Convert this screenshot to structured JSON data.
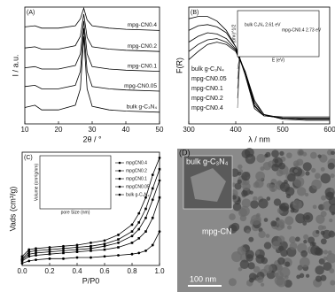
{
  "chart_data": [
    {
      "type": "line",
      "label": "(A)",
      "xlabel": "2θ / °",
      "ylabel": "I / a.u.",
      "xlim": [
        10,
        50
      ],
      "xticks": [
        10,
        20,
        30,
        40,
        50
      ],
      "ylim": [
        0,
        100
      ],
      "x": [
        10,
        13,
        15,
        20,
        25,
        26.5,
        27.5,
        28.5,
        30,
        35,
        40,
        50
      ],
      "series": [
        {
          "name": "mpg-CN0.4",
          "color": "#000000",
          "values": [
            83,
            84,
            82,
            82,
            84,
            90,
            99,
            89,
            84,
            82,
            81,
            80
          ]
        },
        {
          "name": "mpg-CN0.2",
          "color": "#000000",
          "values": [
            65,
            66,
            64,
            64,
            67,
            75,
            94,
            74,
            66,
            64,
            63,
            62
          ]
        },
        {
          "name": "mpg-CN0.1",
          "color": "#000000",
          "values": [
            48,
            49,
            47,
            47,
            50,
            60,
            88,
            60,
            49,
            47,
            46,
            45
          ]
        },
        {
          "name": "mpg-CN0.05",
          "color": "#000000",
          "values": [
            32,
            33,
            30,
            30,
            33,
            45,
            82,
            45,
            32,
            30,
            29,
            28
          ]
        },
        {
          "name": "bulk g-C₃N₄",
          "color": "#000000",
          "values": [
            14,
            16,
            12,
            12,
            16,
            30,
            75,
            30,
            15,
            12,
            11,
            10
          ]
        }
      ]
    },
    {
      "type": "line",
      "label": "(B)",
      "xlabel": "λ / nm",
      "ylabel": "F(R)",
      "xlim": [
        300,
        600
      ],
      "xticks": [
        300,
        400,
        500,
        600
      ],
      "ylim": [
        0,
        100
      ],
      "x": [
        300,
        320,
        340,
        360,
        380,
        400,
        420,
        440,
        460,
        500,
        550,
        600
      ],
      "series": [
        {
          "name": "bulk g-C₃N₄",
          "color": "#000000",
          "values": [
            55,
            62,
            68,
            70,
            68,
            62,
            45,
            20,
            8,
            4,
            3,
            3
          ]
        },
        {
          "name": "mpg-CN0.05",
          "color": "#000000",
          "values": [
            62,
            68,
            72,
            73,
            70,
            63,
            45,
            18,
            8,
            5,
            4,
            4
          ]
        },
        {
          "name": "mpg-CN0.1",
          "color": "#000000",
          "values": [
            70,
            75,
            78,
            77,
            73,
            64,
            44,
            16,
            7,
            5,
            4,
            4
          ]
        },
        {
          "name": "mpg-CN0.2",
          "color": "#000000",
          "values": [
            80,
            84,
            85,
            83,
            78,
            66,
            44,
            15,
            7,
            5,
            5,
            5
          ]
        },
        {
          "name": "mpg-CN0.4",
          "color": "#000000",
          "values": [
            90,
            92,
            92,
            88,
            80,
            66,
            42,
            13,
            7,
            6,
            6,
            6
          ]
        }
      ],
      "inset": {
        "xlabel": "E (eV)",
        "ylabel": "(αhν)^1/2",
        "notes": [
          "bulk C₃N₄ 2.61 eV",
          "mpg-CN0.4 2.73 eV"
        ]
      }
    },
    {
      "type": "line",
      "label": "(C)",
      "xlabel": "P/P0",
      "ylabel": "Vads (cm³/g)",
      "xlim": [
        0,
        1
      ],
      "xticks": [
        {
          "value": 0,
          "label": "0.0"
        },
        0.2,
        0.4,
        0.6,
        0.8,
        {
          "value": 1,
          "label": "1.0"
        }
      ],
      "ylim": [
        0,
        100
      ],
      "x": [
        0,
        0.05,
        0.1,
        0.2,
        0.3,
        0.4,
        0.5,
        0.6,
        0.7,
        0.8,
        0.85,
        0.9,
        0.95,
        1.0
      ],
      "series": [
        {
          "name": "mpgCN0.4",
          "color": "#000000",
          "values": [
            8,
            14,
            15,
            16,
            17,
            18,
            20,
            22,
            27,
            36,
            46,
            60,
            80,
            95
          ]
        },
        {
          "name": "mpgCN0.2",
          "color": "#000000",
          "values": [
            6,
            12,
            13,
            14,
            15,
            16,
            17,
            19,
            23,
            30,
            38,
            50,
            68,
            85
          ]
        },
        {
          "name": "mpgCN0.1",
          "color": "#000000",
          "values": [
            5,
            10,
            11,
            12,
            13,
            14,
            15,
            17,
            20,
            26,
            32,
            42,
            58,
            75
          ]
        },
        {
          "name": "mpgCN0.05",
          "color": "#000000",
          "values": [
            4,
            8,
            9,
            10,
            11,
            12,
            13,
            14,
            16,
            20,
            24,
            30,
            42,
            60
          ]
        },
        {
          "name": "bulk g-C₃N₄",
          "color": "#000000",
          "values": [
            2,
            4,
            5,
            6,
            6,
            7,
            7,
            8,
            9,
            10,
            11,
            13,
            18,
            30
          ]
        }
      ],
      "inset": {
        "xlabel": "pore Size (nm)",
        "ylabel": "Volume (cm³/g/nm)"
      }
    }
  ],
  "image": {
    "label": "(D)",
    "inset_label": "bulk g-C₃N₄",
    "main_label": "mpg-CN",
    "scale_bar": "100 nm"
  }
}
